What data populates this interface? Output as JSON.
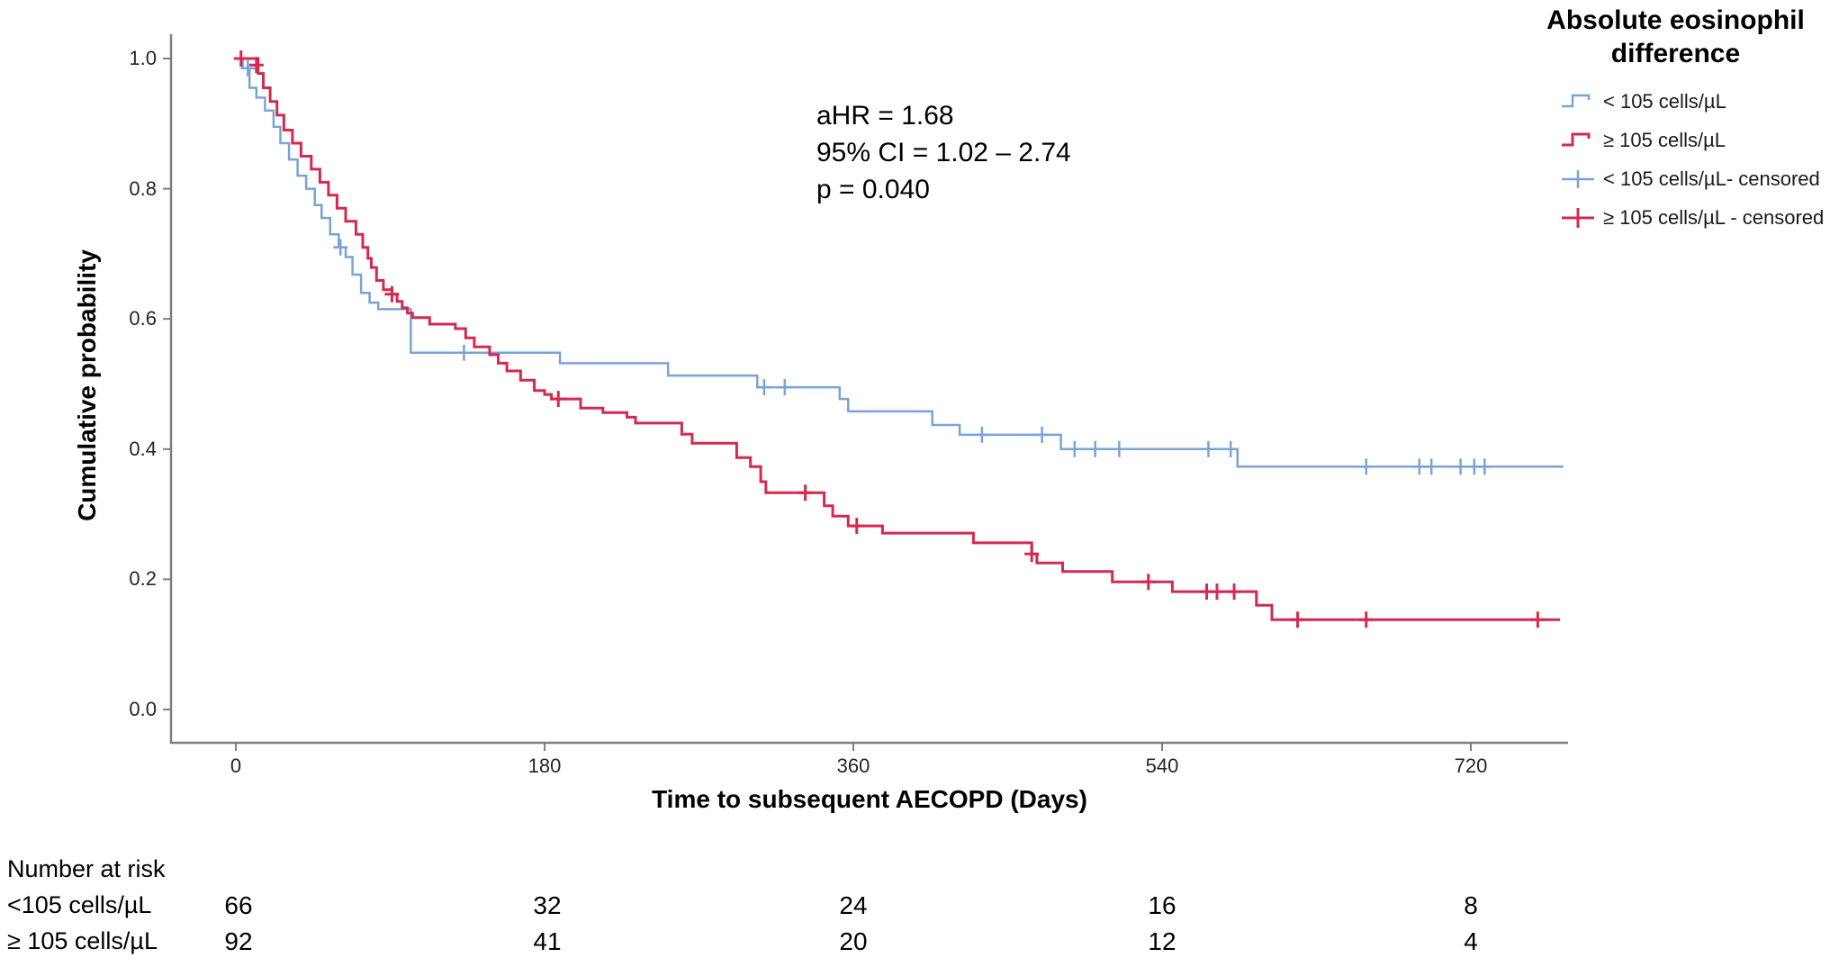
{
  "chart_data": {
    "type": "line",
    "subtype": "kaplan_meier_step",
    "title": "",
    "xlabel": "Time to subsequent AECOPD (Days)",
    "ylabel": "Cumulative probability",
    "xlim": [
      0,
      720
    ],
    "ylim": [
      0.0,
      1.0
    ],
    "grid": false,
    "x_tick_labels": [
      "0",
      "180",
      "360",
      "540",
      "720"
    ],
    "y_tick_labels": [
      "1.0",
      "0.8",
      "0.6",
      "0.4",
      "0.2",
      "0.0"
    ],
    "colors": {
      "blue": "#7AA3D8",
      "red": "#D42A50",
      "axis": "#7f7f7f"
    },
    "annotation": {
      "lines": [
        "aHR = 1.68",
        "95% CI = 1.02 – 2.74",
        "p = 0.040"
      ]
    },
    "legend": {
      "title_lines": [
        "Absolute eosinophil",
        "difference"
      ],
      "items": [
        {
          "label": "< 105 cells/µL",
          "color_key": "blue",
          "glyph": "step"
        },
        {
          "label": "≥ 105 cells/µL",
          "color_key": "red",
          "glyph": "step"
        },
        {
          "label": "< 105 cells/µL- censored",
          "color_key": "blue",
          "glyph": "plus"
        },
        {
          "label": "≥ 105 cells/µL - censored",
          "color_key": "red",
          "glyph": "plus"
        }
      ]
    },
    "series": [
      {
        "name": "< 105 cells/µL",
        "color_key": "blue",
        "end_t": 774,
        "steps": [
          [
            0,
            1.0
          ],
          [
            4,
            0.985
          ],
          [
            8,
            0.955
          ],
          [
            12,
            0.94
          ],
          [
            17,
            0.92
          ],
          [
            22,
            0.895
          ],
          [
            26,
            0.87
          ],
          [
            31,
            0.845
          ],
          [
            36,
            0.82
          ],
          [
            41,
            0.8
          ],
          [
            46,
            0.775
          ],
          [
            50,
            0.755
          ],
          [
            55,
            0.73
          ],
          [
            60,
            0.71
          ],
          [
            64,
            0.695
          ],
          [
            68,
            0.668
          ],
          [
            73,
            0.64
          ],
          [
            78,
            0.625
          ],
          [
            83,
            0.615
          ],
          [
            102,
            0.548
          ],
          [
            189,
            0.532
          ],
          [
            252,
            0.513
          ],
          [
            304,
            0.495
          ],
          [
            352,
            0.477
          ],
          [
            357,
            0.458
          ],
          [
            406,
            0.437
          ],
          [
            422,
            0.422
          ],
          [
            481,
            0.4
          ],
          [
            584,
            0.373
          ]
        ],
        "censored": [
          [
            7,
            0.985
          ],
          [
            61,
            0.71
          ],
          [
            133,
            0.548
          ],
          [
            308,
            0.495
          ],
          [
            320,
            0.495
          ],
          [
            435,
            0.422
          ],
          [
            470,
            0.422
          ],
          [
            489,
            0.4
          ],
          [
            501,
            0.4
          ],
          [
            515,
            0.4
          ],
          [
            567,
            0.4
          ],
          [
            580,
            0.4
          ],
          [
            659,
            0.373
          ],
          [
            690,
            0.373
          ],
          [
            697,
            0.373
          ],
          [
            714,
            0.373
          ],
          [
            722,
            0.373
          ],
          [
            728,
            0.373
          ]
        ]
      },
      {
        "name": "≥ 105 cells/µL",
        "color_key": "red",
        "end_t": 772,
        "steps": [
          [
            0,
            1.0
          ],
          [
            13,
            0.977
          ],
          [
            16,
            0.955
          ],
          [
            20,
            0.934
          ],
          [
            24,
            0.913
          ],
          [
            28,
            0.89
          ],
          [
            33,
            0.87
          ],
          [
            38,
            0.85
          ],
          [
            44,
            0.83
          ],
          [
            49,
            0.81
          ],
          [
            54,
            0.79
          ],
          [
            59,
            0.77
          ],
          [
            64,
            0.75
          ],
          [
            70,
            0.73
          ],
          [
            74,
            0.71
          ],
          [
            77,
            0.693
          ],
          [
            79,
            0.679
          ],
          [
            82,
            0.659
          ],
          [
            86,
            0.645
          ],
          [
            91,
            0.638
          ],
          [
            94,
            0.627
          ],
          [
            97,
            0.617
          ],
          [
            100,
            0.609
          ],
          [
            103,
            0.602
          ],
          [
            113,
            0.592
          ],
          [
            128,
            0.585
          ],
          [
            134,
            0.571
          ],
          [
            139,
            0.557
          ],
          [
            148,
            0.545
          ],
          [
            153,
            0.532
          ],
          [
            158,
            0.52
          ],
          [
            166,
            0.506
          ],
          [
            174,
            0.49
          ],
          [
            180,
            0.484
          ],
          [
            184,
            0.477
          ],
          [
            201,
            0.463
          ],
          [
            214,
            0.456
          ],
          [
            228,
            0.449
          ],
          [
            233,
            0.44
          ],
          [
            260,
            0.423
          ],
          [
            266,
            0.409
          ],
          [
            292,
            0.387
          ],
          [
            300,
            0.373
          ],
          [
            306,
            0.35
          ],
          [
            309,
            0.333
          ],
          [
            343,
            0.313
          ],
          [
            348,
            0.297
          ],
          [
            357,
            0.282
          ],
          [
            377,
            0.271
          ],
          [
            430,
            0.256
          ],
          [
            464,
            0.239
          ],
          [
            467,
            0.225
          ],
          [
            482,
            0.212
          ],
          [
            511,
            0.196
          ],
          [
            546,
            0.181
          ],
          [
            595,
            0.16
          ],
          [
            604,
            0.138
          ]
        ],
        "censored": [
          [
            3,
            1.0
          ],
          [
            12,
            0.99
          ],
          [
            91,
            0.638
          ],
          [
            188,
            0.477
          ],
          [
            332,
            0.333
          ],
          [
            362,
            0.282
          ],
          [
            464,
            0.239
          ],
          [
            532,
            0.196
          ],
          [
            566,
            0.181
          ],
          [
            572,
            0.181
          ],
          [
            582,
            0.181
          ],
          [
            619,
            0.138
          ],
          [
            659,
            0.138
          ],
          [
            759,
            0.138
          ]
        ]
      }
    ],
    "risk_table": {
      "header": "Number at risk",
      "time_points": [
        0,
        180,
        360,
        540,
        720
      ],
      "rows": [
        {
          "label": "<105 cells/µL",
          "values": [
            "66",
            "32",
            "24",
            "16",
            "8"
          ]
        },
        {
          "label": "≥ 105 cells/µL",
          "values": [
            "92",
            "41",
            "20",
            "12",
            "4"
          ]
        }
      ]
    }
  }
}
